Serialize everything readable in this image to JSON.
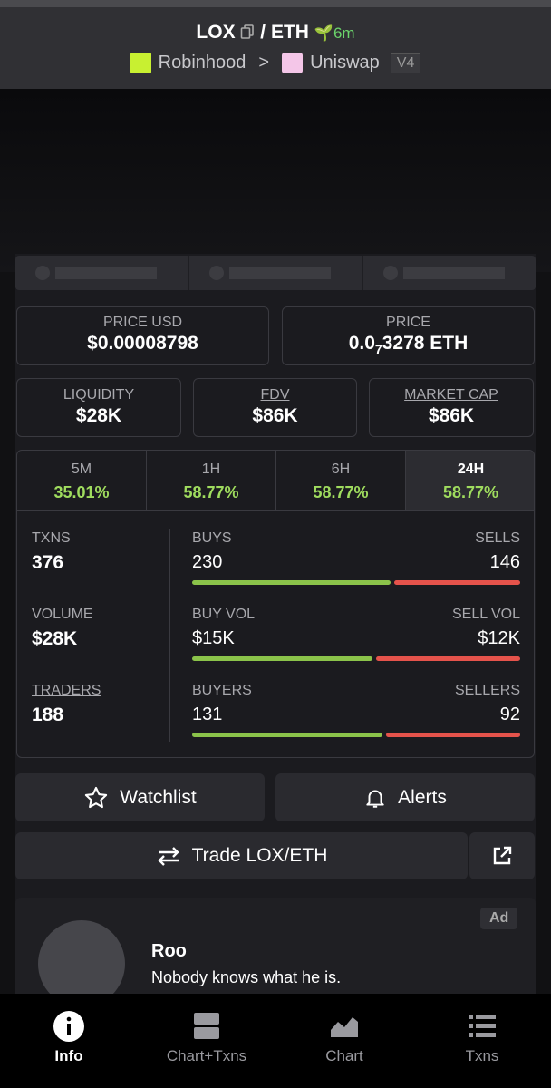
{
  "header": {
    "base": "LOX",
    "sep": "/",
    "quote": "ETH",
    "age": "6m",
    "chain": "Robinhood",
    "arrow": ">",
    "dex": "Uniswap",
    "version": "V4"
  },
  "price_usd": {
    "label": "PRICE USD",
    "value": "$0.00008798"
  },
  "price": {
    "label": "PRICE",
    "value_lead": "0.0",
    "value_zeros": "7",
    "value_tail": "3278 ETH"
  },
  "metrics": [
    {
      "label": "LIQUIDITY",
      "value": "$28K"
    },
    {
      "label": "FDV",
      "value": "$86K"
    },
    {
      "label": "MARKET CAP",
      "value": "$86K"
    }
  ],
  "timeframes": [
    {
      "label": "5M",
      "change": "35.01%"
    },
    {
      "label": "1H",
      "change": "58.77%"
    },
    {
      "label": "6H",
      "change": "58.77%"
    },
    {
      "label": "24H",
      "change": "58.77%"
    }
  ],
  "selected_timeframe": 3,
  "summary": [
    {
      "label": "TXNS",
      "value": "376"
    },
    {
      "label": "VOLUME",
      "value": "$28K"
    },
    {
      "label": "TRADERS",
      "value": "188"
    }
  ],
  "splits": [
    {
      "left_label": "BUYS",
      "left_value": "230",
      "right_label": "SELLS",
      "right_value": "146"
    },
    {
      "left_label": "BUY VOL",
      "left_value": "$15K",
      "right_label": "SELL VOL",
      "right_value": "$12K"
    },
    {
      "left_label": "BUYERS",
      "left_value": "131",
      "right_label": "SELLERS",
      "right_value": "92"
    }
  ],
  "actions": {
    "watchlist": "Watchlist",
    "alerts": "Alerts",
    "trade": "Trade LOX/ETH"
  },
  "ad": {
    "badge": "Ad",
    "name": "Roo",
    "text": "Nobody knows what he is."
  },
  "nav": [
    {
      "label": "Info"
    },
    {
      "label": "Chart+Txns"
    },
    {
      "label": "Chart"
    },
    {
      "label": "Txns"
    }
  ],
  "nav_selected": 0
}
